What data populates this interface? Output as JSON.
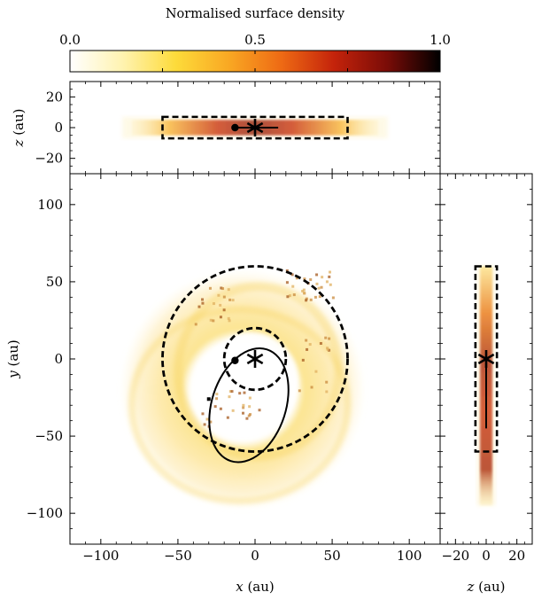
{
  "colorbar": {
    "label": "Normalised surface density",
    "tick_labels": [
      "0.0",
      "0.5",
      "1.0"
    ],
    "ticks": [
      0.0,
      0.5,
      1.0
    ],
    "colormap": [
      "#ffffff",
      "#fff3b0",
      "#fddb3a",
      "#f9a823",
      "#ee6a14",
      "#c4230b",
      "#7a0c07",
      "#000000"
    ]
  },
  "chart_data": [
    {
      "panel": "x-z (edge-on)",
      "type": "heatmap",
      "xlim": [
        -120,
        120
      ],
      "ylim": [
        -30,
        30
      ],
      "ylabel": "z (au)",
      "yticks": [
        -20,
        0,
        20
      ],
      "yticklabels": [
        "−20",
        "0",
        "20"
      ],
      "dashed_box": {
        "x": [
          -60,
          60
        ],
        "z": [
          -7,
          7
        ]
      },
      "star": {
        "x": 0,
        "z": 0
      },
      "planet": {
        "x": -13,
        "z": 0
      },
      "disc_extent": {
        "x": [
          -80,
          80
        ],
        "z": [
          -5,
          5
        ]
      }
    },
    {
      "panel": "x-y (face-on)",
      "type": "heatmap",
      "xlim": [
        -120,
        120
      ],
      "ylim": [
        -120,
        120
      ],
      "xlabel": "x (au)",
      "ylabel": "y (au)",
      "xticks": [
        -100,
        -50,
        0,
        50,
        100
      ],
      "xticklabels": [
        "−100",
        "−50",
        "0",
        "50",
        "100"
      ],
      "yticks": [
        -100,
        -50,
        0,
        50,
        100
      ],
      "yticklabels": [
        "−100",
        "−50",
        "0",
        "50",
        "100"
      ],
      "dashed_circles_radius": [
        60,
        20
      ],
      "planet_orbit": {
        "center": [
          -4,
          -30
        ],
        "semi_axes": [
          24,
          38
        ],
        "rotation_deg": 18
      },
      "star": {
        "x": 0,
        "y": 0
      },
      "planet": {
        "x": -13,
        "y": -1
      },
      "secondary_marker": {
        "x": -30,
        "y": -26
      },
      "disc": {
        "center": [
          -8,
          -20
        ],
        "r_inner": 35,
        "r_outer": 80
      }
    },
    {
      "panel": "z-y (edge-on)",
      "type": "heatmap",
      "xlim": [
        -30,
        30
      ],
      "ylim": [
        -120,
        120
      ],
      "xlabel": "z (au)",
      "xticks": [
        -20,
        0,
        20
      ],
      "xticklabels": [
        "−20",
        "0",
        "20"
      ],
      "dashed_box": {
        "z": [
          -7,
          7
        ],
        "y": [
          -60,
          60
        ]
      },
      "star": {
        "z": 0,
        "y": 0
      },
      "planet_track": {
        "z": 0,
        "y": [
          0,
          -45
        ]
      },
      "disc_extent": {
        "z": [
          -4,
          4
        ],
        "y": [
          -95,
          60
        ]
      }
    }
  ]
}
